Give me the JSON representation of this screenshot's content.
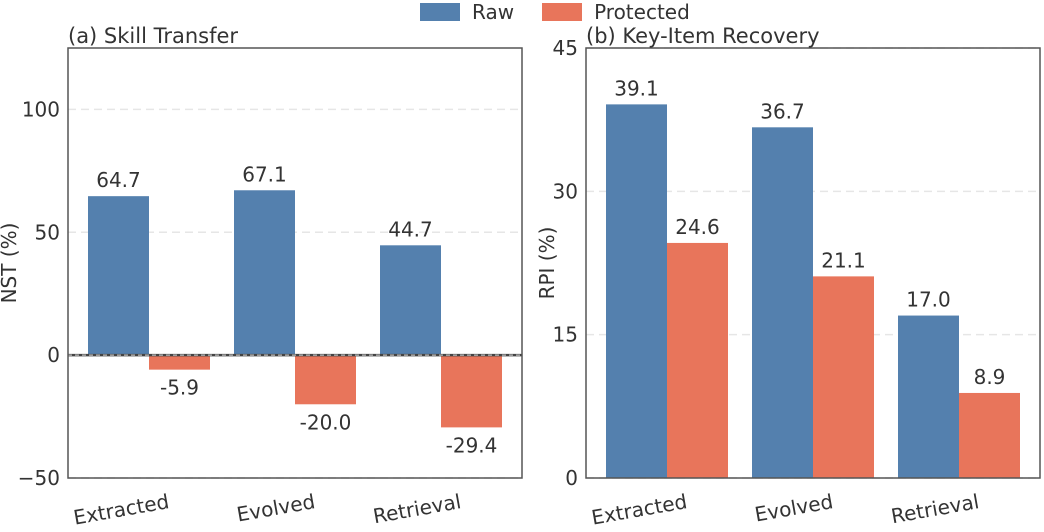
{
  "legend": {
    "raw": "Raw",
    "protected": "Protected"
  },
  "colors": {
    "raw": "#5480ae",
    "protected": "#e8755b",
    "frame": "#555555",
    "grid": "#e6e6e6",
    "text": "#333333"
  },
  "chart_data": [
    {
      "type": "bar",
      "title": "(a) Skill Transfer",
      "xlabel": "",
      "ylabel": "NST (%)",
      "categories": [
        "Extracted",
        "Evolved",
        "Retrieval"
      ],
      "ylim": [
        -50,
        125
      ],
      "yticks": [
        -50,
        0,
        50,
        100
      ],
      "ytick_labels": [
        "−50",
        "0",
        "50",
        "100"
      ],
      "series": [
        {
          "name": "Raw",
          "values": [
            64.7,
            67.1,
            44.7
          ],
          "labels": [
            "64.7",
            "67.1",
            "44.7"
          ]
        },
        {
          "name": "Protected",
          "values": [
            -5.9,
            -20.0,
            -29.4
          ],
          "labels": [
            "-5.9",
            "-20.0",
            "-29.4"
          ]
        }
      ],
      "zero_line": "dashed",
      "grid": "dashed-horizontal"
    },
    {
      "type": "bar",
      "title": "(b) Key-Item Recovery",
      "xlabel": "",
      "ylabel": "RPI (%)",
      "categories": [
        "Extracted",
        "Evolved",
        "Retrieval"
      ],
      "ylim": [
        0,
        45
      ],
      "yticks": [
        0,
        15,
        30,
        45
      ],
      "ytick_labels": [
        "0",
        "15",
        "30",
        "45"
      ],
      "series": [
        {
          "name": "Raw",
          "values": [
            39.1,
            36.7,
            17.0
          ],
          "labels": [
            "39.1",
            "36.7",
            "17.0"
          ]
        },
        {
          "name": "Protected",
          "values": [
            24.6,
            21.1,
            8.9
          ],
          "labels": [
            "24.6",
            "21.1",
            "8.9"
          ]
        }
      ],
      "grid": "dashed-horizontal"
    }
  ]
}
